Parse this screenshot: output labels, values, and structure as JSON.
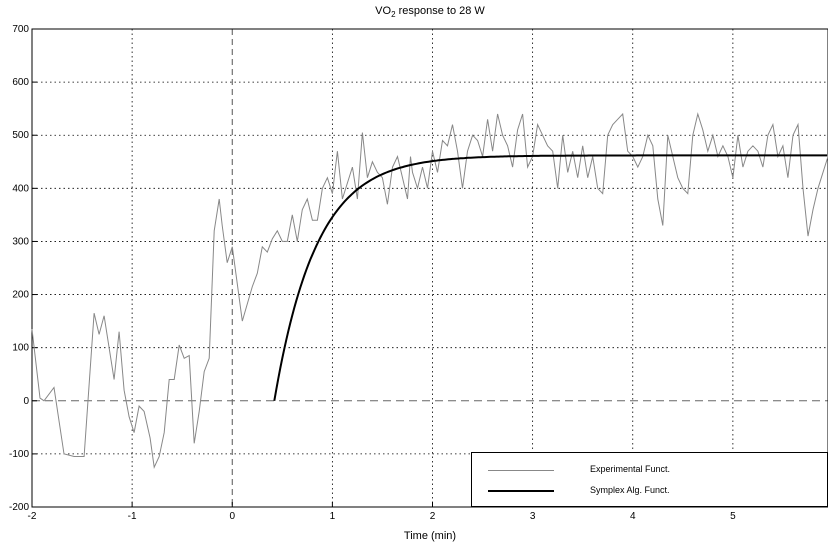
{
  "chart_data": {
    "type": "line",
    "title_prefix": "VO",
    "title_sub": "2",
    "title_suffix": " response to 28 W",
    "xlabel": "Time (min)",
    "ylabel": "",
    "xlim": [
      -2,
      5.95
    ],
    "ylim": [
      -200,
      700
    ],
    "xticks": [
      -2,
      -1,
      0,
      1,
      2,
      3,
      4,
      5
    ],
    "yticks": [
      -200,
      -100,
      0,
      100,
      200,
      300,
      400,
      500,
      600,
      700
    ],
    "grid": true,
    "legend_position": "bottom-right",
    "series": [
      {
        "name": "Experimental Funct.",
        "color": "#888888",
        "x": [
          -2.0,
          -1.92,
          -1.88,
          -1.78,
          -1.68,
          -1.58,
          -1.48,
          -1.38,
          -1.33,
          -1.28,
          -1.23,
          -1.18,
          -1.13,
          -1.08,
          -1.03,
          -0.98,
          -0.93,
          -0.88,
          -0.82,
          -0.78,
          -0.73,
          -0.68,
          -0.63,
          -0.58,
          -0.53,
          -0.48,
          -0.43,
          -0.38,
          -0.33,
          -0.28,
          -0.23,
          -0.18,
          -0.13,
          -0.1,
          -0.05,
          0.0,
          0.1,
          0.2,
          0.25,
          0.3,
          0.35,
          0.4,
          0.45,
          0.5,
          0.55,
          0.6,
          0.65,
          0.7,
          0.75,
          0.8,
          0.85,
          0.9,
          0.95,
          1.0,
          1.05,
          1.1,
          1.15,
          1.2,
          1.25,
          1.3,
          1.35,
          1.4,
          1.45,
          1.5,
          1.55,
          1.6,
          1.65,
          1.7,
          1.75,
          1.78,
          1.8,
          1.85,
          1.9,
          1.95,
          2.0,
          2.05,
          2.1,
          2.15,
          2.2,
          2.25,
          2.3,
          2.35,
          2.4,
          2.45,
          2.5,
          2.55,
          2.6,
          2.65,
          2.7,
          2.75,
          2.8,
          2.85,
          2.9,
          2.95,
          3.0,
          3.05,
          3.1,
          3.15,
          3.2,
          3.25,
          3.3,
          3.35,
          3.4,
          3.45,
          3.5,
          3.55,
          3.6,
          3.65,
          3.7,
          3.75,
          3.8,
          3.85,
          3.9,
          3.95,
          4.0,
          4.05,
          4.1,
          4.15,
          4.2,
          4.25,
          4.3,
          4.35,
          4.4,
          4.45,
          4.5,
          4.55,
          4.6,
          4.65,
          4.7,
          4.75,
          4.8,
          4.85,
          4.9,
          4.95,
          5.0,
          5.05,
          5.1,
          5.15,
          5.2,
          5.25,
          5.3,
          5.35,
          5.4,
          5.45,
          5.5,
          5.55,
          5.6,
          5.65,
          5.7,
          5.75,
          5.8,
          5.85,
          5.9,
          5.95
        ],
        "y": [
          135,
          5,
          0,
          25,
          -100,
          -105,
          -105,
          165,
          125,
          160,
          100,
          40,
          130,
          20,
          -30,
          -60,
          -10,
          -20,
          -70,
          -125,
          -105,
          -60,
          40,
          40,
          105,
          80,
          85,
          -80,
          -20,
          55,
          80,
          320,
          380,
          330,
          260,
          290,
          150,
          215,
          240,
          290,
          280,
          305,
          320,
          300,
          300,
          350,
          300,
          360,
          380,
          340,
          340,
          400,
          420,
          390,
          470,
          380,
          410,
          440,
          380,
          505,
          420,
          450,
          430,
          420,
          370,
          440,
          460,
          420,
          380,
          460,
          430,
          400,
          440,
          400,
          470,
          430,
          490,
          480,
          520,
          470,
          400,
          470,
          500,
          490,
          460,
          530,
          470,
          540,
          500,
          480,
          440,
          510,
          540,
          440,
          460,
          520,
          500,
          480,
          470,
          400,
          500,
          430,
          470,
          420,
          480,
          420,
          460,
          400,
          390,
          500,
          520,
          530,
          540,
          470,
          460,
          440,
          460,
          500,
          480,
          380,
          330,
          500,
          460,
          420,
          400,
          390,
          500,
          540,
          510,
          470,
          500,
          460,
          480,
          460,
          420,
          500,
          440,
          470,
          480,
          470,
          440,
          500,
          520,
          460,
          480,
          420,
          500,
          520,
          400,
          310,
          360,
          400,
          430,
          460
        ]
      },
      {
        "name": "Symplex Alg. Funct.",
        "color": "#000000",
        "model": {
          "baseline": 0,
          "amplitude": 462,
          "time_delay_min": 0.42,
          "tau_min": 0.42
        }
      }
    ]
  }
}
